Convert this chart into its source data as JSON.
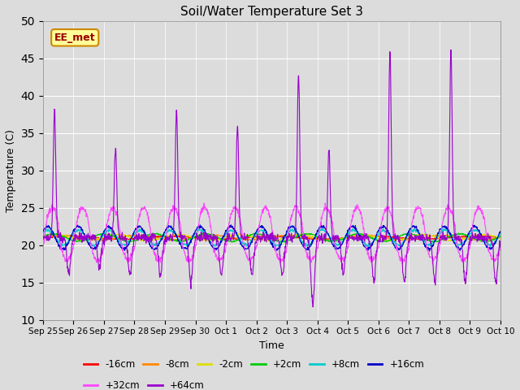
{
  "title": "Soil/Water Temperature Set 3",
  "xlabel": "Time",
  "ylabel": "Temperature (C)",
  "ylim": [
    10,
    50
  ],
  "yticks": [
    10,
    15,
    20,
    25,
    30,
    35,
    40,
    45,
    50
  ],
  "background_color": "#dcdcdc",
  "plot_bg_color": "#dcdcdc",
  "annotation_text": "EE_met",
  "annotation_bg": "#ffff99",
  "annotation_border": "#cc8800",
  "annotation_text_color": "#990000",
  "series_colors": {
    "-16cm": "#ff0000",
    "-8cm": "#ff8800",
    "-2cm": "#dddd00",
    "+2cm": "#00cc00",
    "+8cm": "#00cccc",
    "+16cm": "#0000cc",
    "+32cm": "#ff44ff",
    "+64cm": "#9900cc"
  },
  "num_days": 15,
  "n_points": 1500,
  "x_tick_labels": [
    "Sep 25",
    "Sep 26",
    "Sep 27",
    "Sep 28",
    "Sep 29",
    "Sep 30",
    "Oct 1",
    "Oct 2",
    "Oct 3",
    "Oct 4",
    "Oct 5",
    "Oct 6",
    "Oct 7",
    "Oct 8",
    "Oct 9",
    "Oct 10"
  ],
  "x_tick_positions": [
    0,
    1,
    2,
    3,
    4,
    5,
    6,
    7,
    8,
    9,
    10,
    11,
    12,
    13,
    14,
    15
  ]
}
